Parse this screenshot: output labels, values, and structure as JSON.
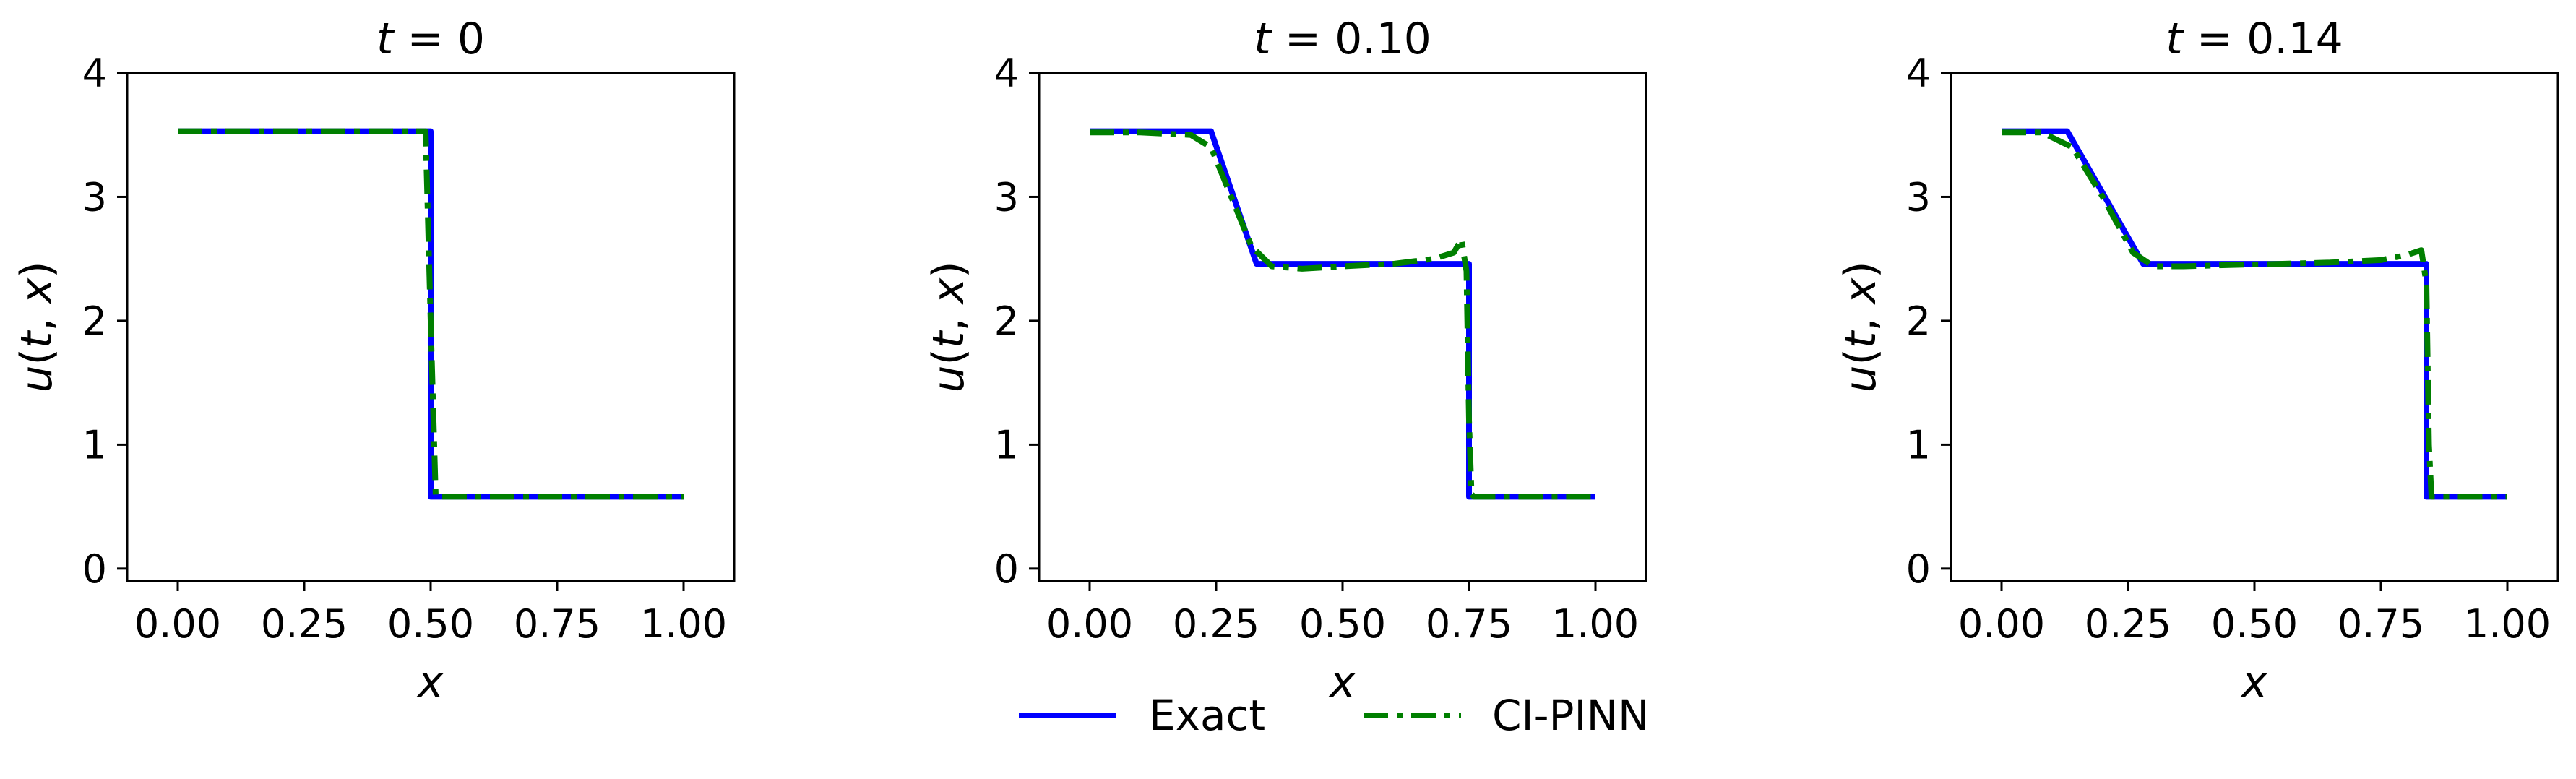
{
  "figure": {
    "legend": [
      {
        "name": "Exact",
        "color": "#0000ff",
        "dash": "solid"
      },
      {
        "name": "CI-PINN",
        "color": "#007f00",
        "dash": "dashdot"
      }
    ]
  },
  "chart_data": [
    {
      "type": "line",
      "title": "t = 0",
      "title_var": "t",
      "title_val": "0",
      "xlabel": "x",
      "ylabel_parts": [
        "u",
        "(",
        "t",
        ", ",
        "x",
        ")"
      ],
      "xlim": [
        -0.1,
        1.1
      ],
      "ylim": [
        -0.1,
        4
      ],
      "xticks": [
        0,
        0.25,
        0.5,
        0.75,
        1.0
      ],
      "xtick_labels": [
        "0.00",
        "0.25",
        "0.50",
        "0.75",
        "1.00"
      ],
      "yticks": [
        0,
        1,
        2,
        3,
        4
      ],
      "ytick_labels": [
        "0",
        "1",
        "2",
        "3",
        "4"
      ],
      "grid": false,
      "series": [
        {
          "name": "Exact",
          "color": "#0000ff",
          "dash": "solid",
          "x": [
            0,
            0.5,
            0.5,
            1.0
          ],
          "y": [
            3.53,
            3.53,
            0.58,
            0.58
          ]
        },
        {
          "name": "CI-PINN",
          "color": "#007f00",
          "dash": "dashdot",
          "x": [
            0,
            0.49,
            0.5,
            0.51,
            1.0
          ],
          "y": [
            3.53,
            3.53,
            2.0,
            0.58,
            0.58
          ]
        }
      ]
    },
    {
      "type": "line",
      "title": "t = 0.10",
      "title_var": "t",
      "title_val": "0.10",
      "xlabel": "x",
      "ylabel_parts": [
        "u",
        "(",
        "t",
        ", ",
        "x",
        ")"
      ],
      "xlim": [
        -0.1,
        1.1
      ],
      "ylim": [
        -0.1,
        4
      ],
      "xticks": [
        0,
        0.25,
        0.5,
        0.75,
        1.0
      ],
      "xtick_labels": [
        "0.00",
        "0.25",
        "0.50",
        "0.75",
        "1.00"
      ],
      "yticks": [
        0,
        1,
        2,
        3,
        4
      ],
      "ytick_labels": [
        "0",
        "1",
        "2",
        "3",
        "4"
      ],
      "grid": false,
      "series": [
        {
          "name": "Exact",
          "color": "#0000ff",
          "dash": "solid",
          "x": [
            0,
            0.24,
            0.33,
            0.75,
            0.75,
            1.0
          ],
          "y": [
            3.53,
            3.53,
            2.46,
            2.46,
            0.58,
            0.58
          ]
        },
        {
          "name": "CI-PINN",
          "color": "#007f00",
          "dash": "dashdot",
          "x": [
            0,
            0.1,
            0.2,
            0.24,
            0.28,
            0.32,
            0.36,
            0.42,
            0.5,
            0.6,
            0.68,
            0.72,
            0.735,
            0.745,
            0.75,
            0.755,
            0.76,
            0.8,
            1.0
          ],
          "y": [
            3.52,
            3.52,
            3.5,
            3.4,
            3.0,
            2.6,
            2.44,
            2.42,
            2.44,
            2.46,
            2.5,
            2.55,
            2.66,
            2.4,
            1.2,
            0.6,
            0.58,
            0.58,
            0.58
          ]
        }
      ]
    },
    {
      "type": "line",
      "title": "t = 0.14",
      "title_var": "t",
      "title_val": "0.14",
      "xlabel": "x",
      "ylabel_parts": [
        "u",
        "(",
        "t",
        ", ",
        "x",
        ")"
      ],
      "xlim": [
        -0.1,
        1.1
      ],
      "ylim": [
        -0.1,
        4
      ],
      "xticks": [
        0,
        0.25,
        0.5,
        0.75,
        1.0
      ],
      "xtick_labels": [
        "0.00",
        "0.25",
        "0.50",
        "0.75",
        "1.00"
      ],
      "yticks": [
        0,
        1,
        2,
        3,
        4
      ],
      "ytick_labels": [
        "0",
        "1",
        "2",
        "3",
        "4"
      ],
      "grid": false,
      "series": [
        {
          "name": "Exact",
          "color": "#0000ff",
          "dash": "solid",
          "x": [
            0,
            0.13,
            0.28,
            0.84,
            0.84,
            1.0
          ],
          "y": [
            3.53,
            3.53,
            2.46,
            2.46,
            0.58,
            0.58
          ]
        },
        {
          "name": "CI-PINN",
          "color": "#007f00",
          "dash": "dashdot",
          "x": [
            0,
            0.08,
            0.14,
            0.2,
            0.26,
            0.3,
            0.36,
            0.45,
            0.55,
            0.65,
            0.75,
            0.8,
            0.83,
            0.84,
            0.845,
            0.85,
            0.87,
            1.0
          ],
          "y": [
            3.52,
            3.52,
            3.4,
            3.0,
            2.55,
            2.44,
            2.44,
            2.45,
            2.46,
            2.47,
            2.49,
            2.53,
            2.57,
            2.3,
            1.0,
            0.58,
            0.58,
            0.58
          ]
        }
      ]
    }
  ]
}
